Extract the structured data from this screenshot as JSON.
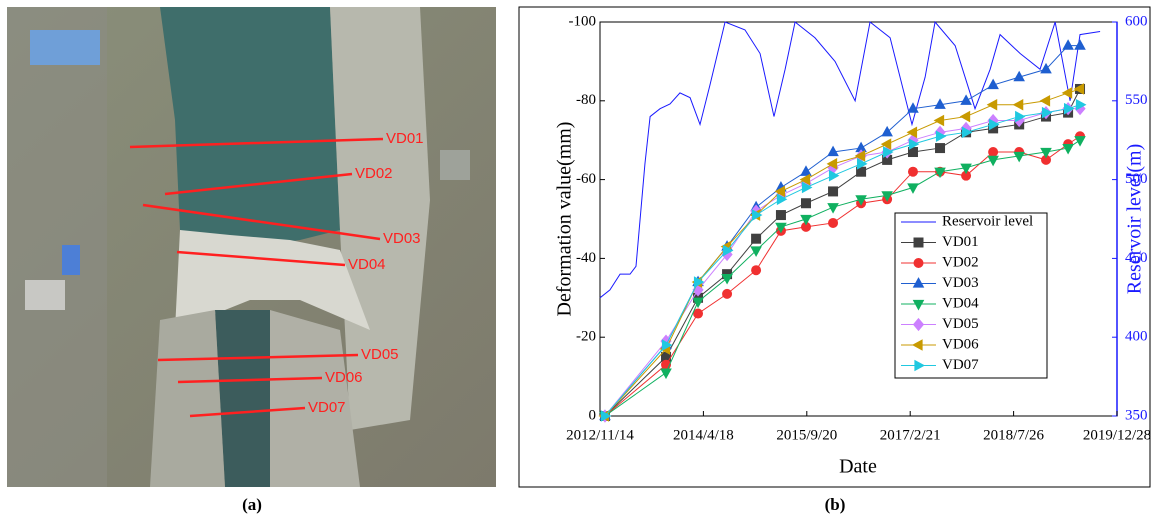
{
  "panel_a": {
    "labels": [
      "VD01",
      "VD02",
      "VD03",
      "VD04",
      "VD05",
      "VD06",
      "VD07"
    ],
    "caption": "(a)"
  },
  "panel_b_caption": "(b)",
  "chart_data": {
    "type": "line",
    "xlabel": "Date",
    "ylabel": "Deformation value(mm)",
    "y2label": "Reservoir level(m)",
    "xlim": [
      "2012/11/14",
      "2019/12/28"
    ],
    "xticks": [
      "2012/11/14",
      "2014/4/18",
      "2015/9/20",
      "2017/2/21",
      "2018/7/26",
      "2019/12/28"
    ],
    "ylim": [
      0,
      -100
    ],
    "yticks": [
      0,
      -20,
      -40,
      -60,
      -80,
      -100
    ],
    "y2lim": [
      350,
      600
    ],
    "y2ticks": [
      350,
      400,
      450,
      500,
      550,
      600
    ],
    "x": [
      "2012/12/9",
      "2013/10/12",
      "2014/3/22",
      "2014/8/15",
      "2015/1/8",
      "2015/5/13",
      "2015/9/16",
      "2016/1/30",
      "2016/6/19",
      "2016/10/28",
      "2017/3/7",
      "2017/7/21",
      "2017/11/29",
      "2018/4/14",
      "2018/8/23",
      "2019/1/5",
      "2019/4/26",
      "2019/6/25"
    ],
    "series": [
      {
        "name": "Reservoir level",
        "color": "#1a1aff",
        "axis": "y2",
        "x": [
          "2012/11/14",
          "2013/1/3",
          "2013/2/23",
          "2013/4/14",
          "2013/5/14",
          "2013/6/28",
          "2013/7/24",
          "2013/9/12",
          "2013/11/1",
          "2013/12/21",
          "2014/2/10",
          "2014/4/1",
          "2014/5/21",
          "2014/8/5",
          "2014/11/13",
          "2015/1/28",
          "2015/4/8",
          "2015/6/3",
          "2015/7/23",
          "2015/10/31",
          "2016/2/9",
          "2016/5/20",
          "2016/8/3",
          "2016/11/12",
          "2017/3/2",
          "2017/5/7",
          "2017/6/26",
          "2017/10/5",
          "2018/1/13",
          "2018/3/30",
          "2018/5/19",
          "2018/8/28",
          "2018/12/6",
          "2019/2/20",
          "2019/5/6",
          "2019/6/25",
          "2019/10/4"
        ],
        "values": [
          425,
          430,
          440,
          440,
          445,
          510,
          540,
          545,
          548,
          555,
          552,
          535,
          560,
          600,
          595,
          580,
          540,
          570,
          600,
          590,
          575,
          550,
          600,
          590,
          535,
          565,
          600,
          585,
          545,
          570,
          592,
          580,
          570,
          600,
          550,
          592,
          594
        ]
      },
      {
        "name": "VD01",
        "color": "#404040",
        "marker": "square",
        "values": [
          0,
          -15,
          -30,
          -36,
          -45,
          -51,
          -54,
          -57,
          -62,
          -65,
          -67,
          -68,
          -72,
          -73,
          -74,
          -76,
          -77,
          -83
        ]
      },
      {
        "name": "VD02",
        "color": "#f03030",
        "marker": "circle",
        "values": [
          0,
          -13,
          -26,
          -31,
          -37,
          -47,
          -48,
          -49,
          -54,
          -55,
          -62,
          -62,
          -61,
          -67,
          -67,
          -65,
          -69,
          -71
        ]
      },
      {
        "name": "VD03",
        "color": "#1f5fd0",
        "marker": "triangle-up",
        "values": [
          0,
          -18,
          -34,
          -43,
          -53,
          -58,
          -62,
          -67,
          -68,
          -72,
          -78,
          -79,
          -80,
          -84,
          -86,
          -88,
          -94,
          -94
        ]
      },
      {
        "name": "VD04",
        "color": "#10b060",
        "marker": "triangle-down",
        "values": [
          0,
          -11,
          -29,
          -35,
          -42,
          -48,
          -50,
          -53,
          -55,
          -56,
          -58,
          -62,
          -63,
          -65,
          -66,
          -67,
          -68,
          -70
        ]
      },
      {
        "name": "VD05",
        "color": "#cc80ff",
        "marker": "diamond",
        "values": [
          0,
          -19,
          -32,
          -41,
          -52,
          -56,
          -59,
          -63,
          -66,
          -67,
          -70,
          -72,
          -73,
          -75,
          -75,
          -77,
          -78,
          -78
        ]
      },
      {
        "name": "VD06",
        "color": "#c89a00",
        "marker": "triangle-left",
        "values": [
          0,
          -17,
          -34,
          -43,
          -51,
          -57,
          -60,
          -64,
          -66,
          -69,
          -72,
          -75,
          -76,
          -79,
          -79,
          -80,
          -82,
          -83
        ]
      },
      {
        "name": "VD07",
        "color": "#20c8e0",
        "marker": "triangle-right",
        "values": [
          0,
          -18,
          -34,
          -42,
          -51,
          -55,
          -58,
          -61,
          -64,
          -67,
          -69,
          -71,
          -72,
          -74,
          -76,
          -77,
          -78,
          -79
        ]
      }
    ]
  }
}
